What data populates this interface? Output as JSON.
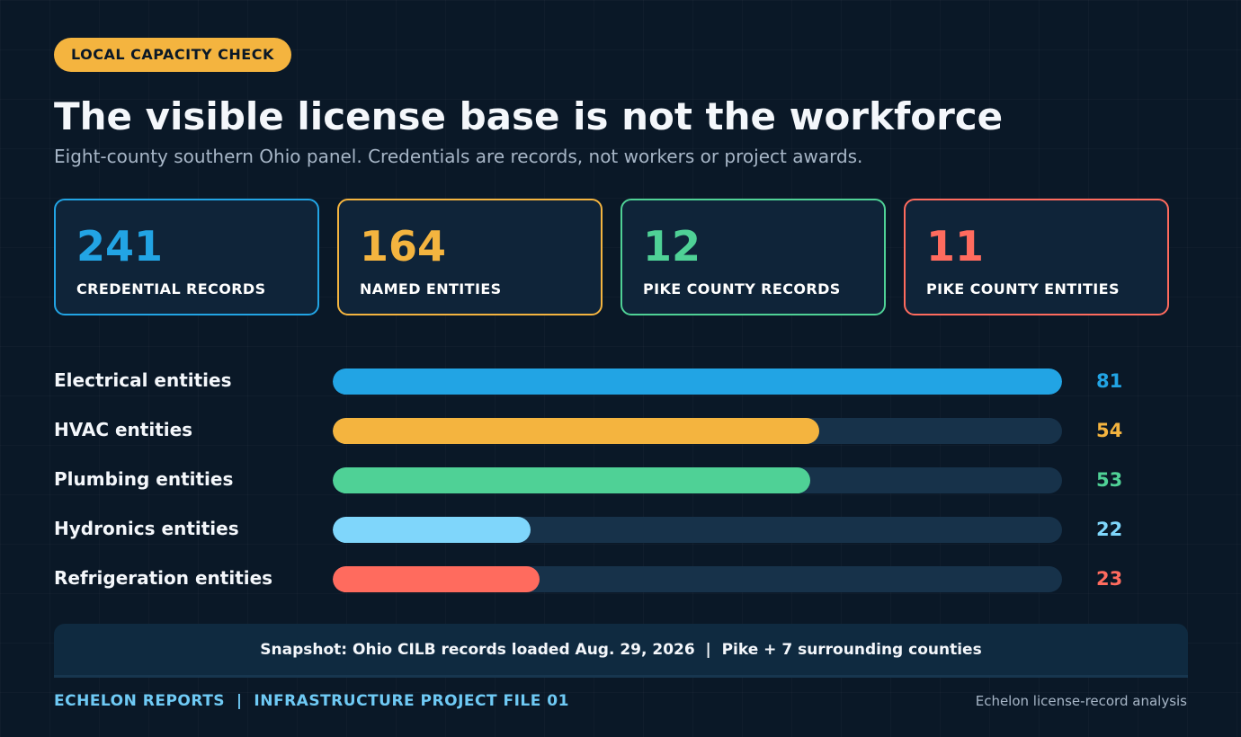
{
  "badge": "LOCAL CAPACITY CHECK",
  "title": "The visible license base is not the workforce",
  "subtitle": "Eight-county southern Ohio panel. Credentials are records, not workers or project awards.",
  "stats": [
    {
      "value": "241",
      "label": "CREDENTIAL RECORDS",
      "color": "#22a4e4"
    },
    {
      "value": "164",
      "label": "NAMED ENTITIES",
      "color": "#f4b43f"
    },
    {
      "value": "12",
      "label": "PIKE COUNTY RECORDS",
      "color": "#4fd196"
    },
    {
      "value": "11",
      "label": "PIKE COUNTY ENTITIES",
      "color": "#ff6b5e"
    }
  ],
  "chart_data": {
    "type": "bar",
    "orientation": "horizontal",
    "categories": [
      "Electrical entities",
      "HVAC entities",
      "Plumbing entities",
      "Hydronics entities",
      "Refrigeration entities"
    ],
    "values": [
      81,
      54,
      53,
      22,
      23
    ],
    "colors": [
      "#22a4e4",
      "#f4b43f",
      "#4fd196",
      "#7fd6fb",
      "#ff6b5e"
    ],
    "xlim": [
      0,
      81
    ],
    "grid": false,
    "data_labels": true
  },
  "snapshot": "Snapshot: Ohio CILB records loaded Aug. 29, 2026  |  Pike + 7 surrounding counties",
  "footer": {
    "left": "ECHELON REPORTS  |  INFRASTRUCTURE PROJECT FILE 01",
    "right": "Echelon license-record analysis"
  }
}
